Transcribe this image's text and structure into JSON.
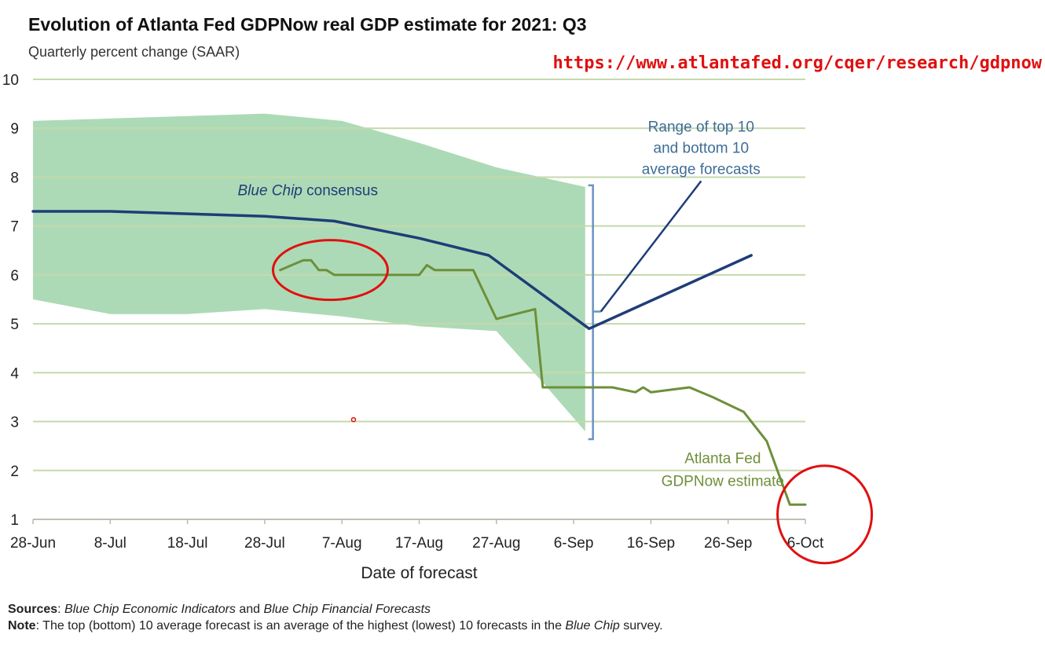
{
  "title": "Evolution of Atlanta Fed GDPNow real GDP estimate for 2021: Q3",
  "subtitle": "Quarterly percent change (SAAR)",
  "source_url": "https://www.atlantafed.org/cqer/research/gdpnow",
  "colors": {
    "grid": "#c5d9ab",
    "band": "#9fd3a9",
    "consensus": "#1f3d78",
    "gdpnow": "#6e8f3a",
    "bracket": "#6a93c2",
    "range_annotation": "#3e6d97",
    "highlight": "#e01010",
    "url": "#e01010"
  },
  "chart_data": {
    "type": "line",
    "title": "Evolution of Atlanta Fed GDPNow real GDP estimate for 2021: Q3",
    "subtitle": "Quarterly percent change (SAAR)",
    "xlabel": "Date of forecast",
    "ylabel": "Quarterly percent change (SAAR)",
    "ylim": [
      1,
      10
    ],
    "xlim": [
      0,
      100
    ],
    "x_unit": "days since 28-Jun",
    "grid": true,
    "x_ticks": [
      {
        "x": 0,
        "label": "28-Jun"
      },
      {
        "x": 10,
        "label": "8-Jul"
      },
      {
        "x": 20,
        "label": "18-Jul"
      },
      {
        "x": 30,
        "label": "28-Jul"
      },
      {
        "x": 40,
        "label": "7-Aug"
      },
      {
        "x": 50,
        "label": "17-Aug"
      },
      {
        "x": 60,
        "label": "27-Aug"
      },
      {
        "x": 70,
        "label": "6-Sep"
      },
      {
        "x": 80,
        "label": "16-Sep"
      },
      {
        "x": 90,
        "label": "26-Sep"
      },
      {
        "x": 100,
        "label": "6-Oct"
      }
    ],
    "y_ticks": [
      1,
      2,
      3,
      4,
      5,
      6,
      7,
      8,
      9,
      10
    ],
    "band": {
      "name": "Range of top 10 and bottom 10 average forecasts",
      "upper": [
        [
          0,
          9.15
        ],
        [
          10,
          9.2
        ],
        [
          20,
          9.25
        ],
        [
          30,
          9.3
        ],
        [
          40,
          9.15
        ],
        [
          50,
          8.7
        ],
        [
          60,
          8.2
        ],
        [
          71.5,
          7.8
        ]
      ],
      "lower": [
        [
          0,
          5.5
        ],
        [
          10,
          5.2
        ],
        [
          20,
          5.2
        ],
        [
          30,
          5.3
        ],
        [
          40,
          5.15
        ],
        [
          50,
          4.95
        ],
        [
          60,
          4.85
        ],
        [
          66,
          3.8
        ],
        [
          71.5,
          2.8
        ]
      ]
    },
    "series": [
      {
        "name": "Blue Chip consensus",
        "x": [
          0,
          10,
          20,
          30,
          39,
          50,
          59,
          72,
          93
        ],
        "values": [
          7.3,
          7.3,
          7.25,
          7.2,
          7.1,
          6.75,
          6.4,
          4.9,
          6.4
        ]
      },
      {
        "name": "Atlanta Fed GDPNow estimate",
        "x": [
          32,
          35,
          36,
          37,
          38,
          39,
          41,
          50,
          51,
          52,
          57,
          60,
          65,
          66,
          70,
          75,
          78,
          79,
          80,
          85,
          88,
          92,
          95,
          98,
          100
        ],
        "values": [
          6.1,
          6.3,
          6.3,
          6.1,
          6.1,
          6.0,
          6.0,
          6.0,
          6.2,
          6.1,
          6.1,
          5.1,
          5.3,
          3.7,
          3.7,
          3.7,
          3.6,
          3.7,
          3.6,
          3.7,
          3.5,
          3.2,
          2.6,
          1.3,
          1.3
        ]
      }
    ],
    "annotations": [
      {
        "text": "Blue Chip consensus",
        "series": "Blue Chip consensus"
      },
      {
        "lines": [
          "Range of top 10",
          "and bottom 10",
          "average forecasts"
        ],
        "target": "band bracket"
      },
      {
        "lines": [
          "Atlanta Fed",
          "GDPNow estimate"
        ],
        "series": "Atlanta Fed GDPNow estimate"
      }
    ],
    "highlights": [
      {
        "shape": "ellipse",
        "cx": 38.5,
        "cy": 6.1
      },
      {
        "shape": "circle",
        "cx": 102.5,
        "cy": 1.1
      },
      {
        "shape": "dot",
        "cx": 41.5,
        "cy": 3.04
      }
    ]
  },
  "footnote": {
    "sources_label": "Sources",
    "sources_text_1": "Blue Chip Economic Indicators",
    "sources_and": " and ",
    "sources_text_2": "Blue Chip Financial Forecasts",
    "note_label": "Note",
    "note_text_1": ": The top (bottom) 10 average forecast is an average of the highest (lowest) 10 forecasts in the ",
    "note_italic": "Blue Chip",
    "note_text_2": " survey."
  }
}
